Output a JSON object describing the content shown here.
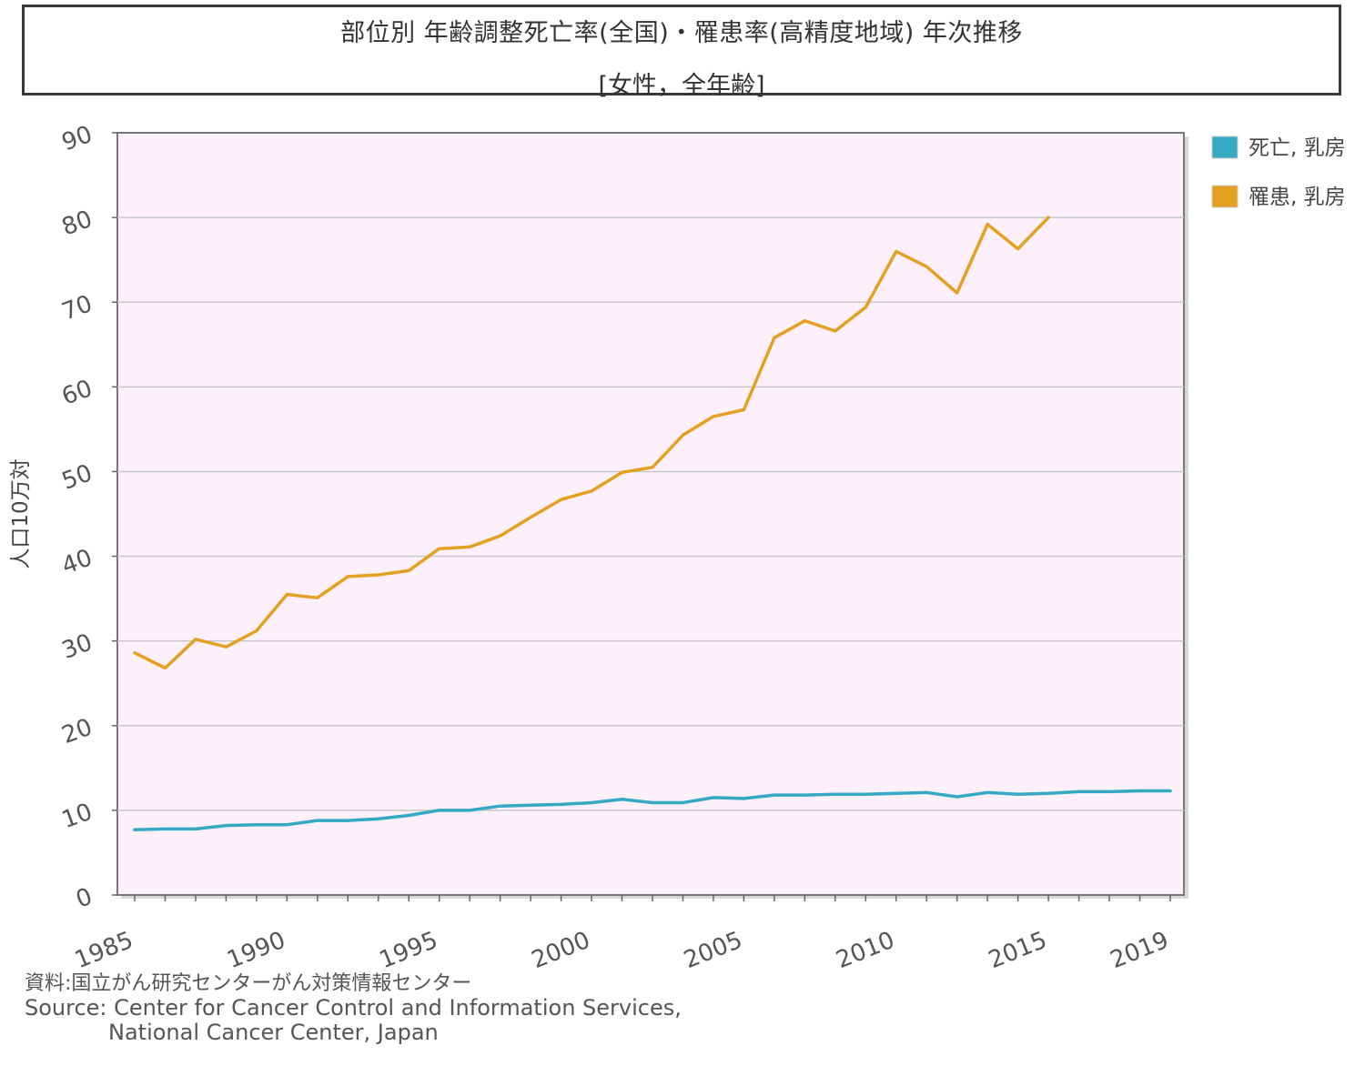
{
  "header": {
    "title": "部位別 年齢調整死亡率(全国)・罹患率(高精度地域) 年次推移",
    "subtitle": "[女性，全年齢]"
  },
  "footer": {
    "source_jp": "資料:国立がん研究センターがん対策情報センター",
    "source_en_1": "Source: Center for Cancer Control and Information Services,",
    "source_en_2": "National Cancer Center, Japan"
  },
  "colors": {
    "plot_background": "#fdf0fb",
    "grid": "#c8c8c8",
    "axis": "#666666",
    "mortality": "#35a9c4",
    "incidence": "#e3a122"
  },
  "chart_data": {
    "type": "line",
    "title": "部位別 年齢調整死亡率(全国)・罹患率(高精度地域) 年次推移",
    "subtitle": "[女性，全年齢]",
    "ylabel": "人口10万対",
    "xlabel": "",
    "xlim": [
      1985,
      2019
    ],
    "ylim": [
      0,
      90
    ],
    "yticks": [
      "0",
      "10",
      "20",
      "30",
      "40",
      "50",
      "60",
      "70",
      "80",
      "90"
    ],
    "xticks": [
      "1985",
      "1990",
      "1995",
      "2000",
      "2005",
      "2010",
      "2015",
      "2019"
    ],
    "grid": true,
    "legend_position": "right",
    "series": [
      {
        "name": "死亡, 乳房",
        "color": "#35a9c4",
        "x": [
          1985,
          1986,
          1987,
          1988,
          1989,
          1990,
          1991,
          1992,
          1993,
          1994,
          1995,
          1996,
          1997,
          1998,
          1999,
          2000,
          2001,
          2002,
          2003,
          2004,
          2005,
          2006,
          2007,
          2008,
          2009,
          2010,
          2011,
          2012,
          2013,
          2014,
          2015,
          2016,
          2017,
          2018,
          2019
        ],
        "y": [
          7.7,
          7.8,
          7.8,
          8.2,
          8.3,
          8.3,
          8.8,
          8.8,
          9.0,
          9.4,
          10.0,
          10.0,
          10.5,
          10.6,
          10.7,
          10.9,
          11.3,
          10.9,
          10.9,
          11.5,
          11.4,
          11.8,
          11.8,
          11.9,
          11.9,
          12.0,
          12.1,
          11.6,
          12.1,
          11.9,
          12.0,
          12.2,
          12.2,
          12.3,
          12.3
        ]
      },
      {
        "name": "罹患, 乳房",
        "color": "#e3a122",
        "x": [
          1985,
          1986,
          1987,
          1988,
          1989,
          1990,
          1991,
          1992,
          1993,
          1994,
          1995,
          1996,
          1997,
          1998,
          1999,
          2000,
          2001,
          2002,
          2003,
          2004,
          2005,
          2006,
          2007,
          2008,
          2009,
          2010,
          2011,
          2012,
          2013,
          2014,
          2015
        ],
        "y": [
          28.6,
          26.8,
          30.2,
          29.3,
          31.2,
          35.5,
          35.1,
          37.6,
          37.8,
          38.3,
          40.9,
          41.1,
          42.4,
          44.6,
          46.7,
          47.7,
          49.9,
          50.5,
          54.3,
          56.5,
          57.3,
          65.8,
          67.8,
          66.6,
          69.4,
          76.0,
          74.2,
          71.1,
          79.2,
          76.3,
          80.0
        ]
      }
    ]
  }
}
